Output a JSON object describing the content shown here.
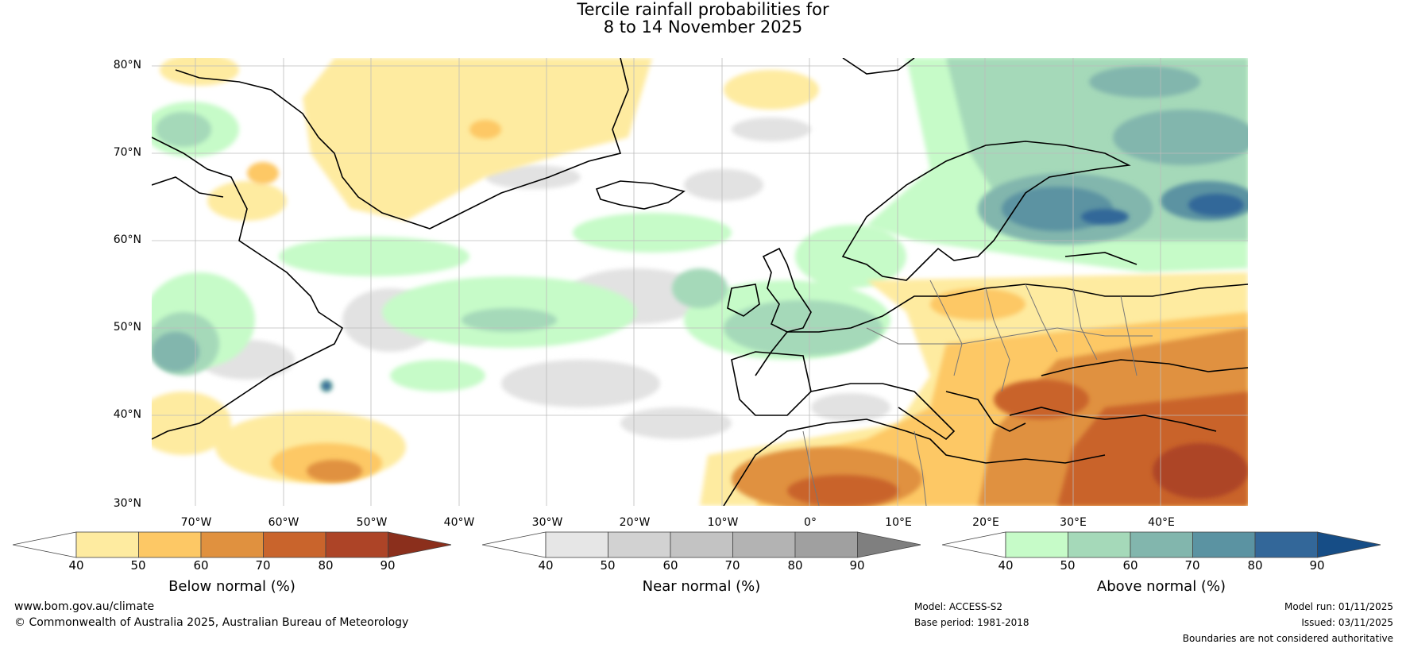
{
  "title": {
    "line1": "Tercile rainfall probabilities for",
    "line2": "8 to 14 November 2025"
  },
  "lat_labels": [
    "80°N",
    "70°N",
    "60°N",
    "50°N",
    "40°N",
    "30°N"
  ],
  "lon_labels": [
    "70°W",
    "60°W",
    "50°W",
    "40°W",
    "30°W",
    "20°W",
    "10°W",
    "0°",
    "10°E",
    "20°E",
    "30°E",
    "40°E"
  ],
  "colorbars": {
    "below": {
      "label": "Below normal (%)",
      "ticks": [
        "40",
        "50",
        "60",
        "70",
        "80",
        "90"
      ],
      "colors": [
        "#ffffff",
        "#feeba0",
        "#fdc865",
        "#e0913f",
        "#c9642c",
        "#ad4427",
        "#8b2f1c"
      ]
    },
    "near": {
      "label": "Near normal (%)",
      "ticks": [
        "40",
        "50",
        "60",
        "70",
        "80",
        "90"
      ],
      "colors": [
        "#ffffff",
        "#e6e6e6",
        "#d2d2d2",
        "#c3c3c3",
        "#b3b3b3",
        "#a0a0a0",
        "#7f7f7f"
      ]
    },
    "above": {
      "label": "Above normal (%)",
      "ticks": [
        "40",
        "50",
        "60",
        "70",
        "80",
        "90"
      ],
      "colors": [
        "#ffffff",
        "#c6fbc8",
        "#a5d9b9",
        "#82b6ad",
        "#5b93a2",
        "#336799",
        "#164d86"
      ]
    }
  },
  "footer": {
    "website": "www.bom.gov.au/climate",
    "copyright": "© Commonwealth of Australia 2025, Australian Bureau of Meteorology",
    "model": "Model: ACCESS-S2",
    "base_period": "Base period: 1981-2018",
    "model_run": "Model run: 01/11/2025",
    "issued": "Issued: 03/11/2025",
    "disclaimer": "Boundaries are not considered authoritative"
  }
}
